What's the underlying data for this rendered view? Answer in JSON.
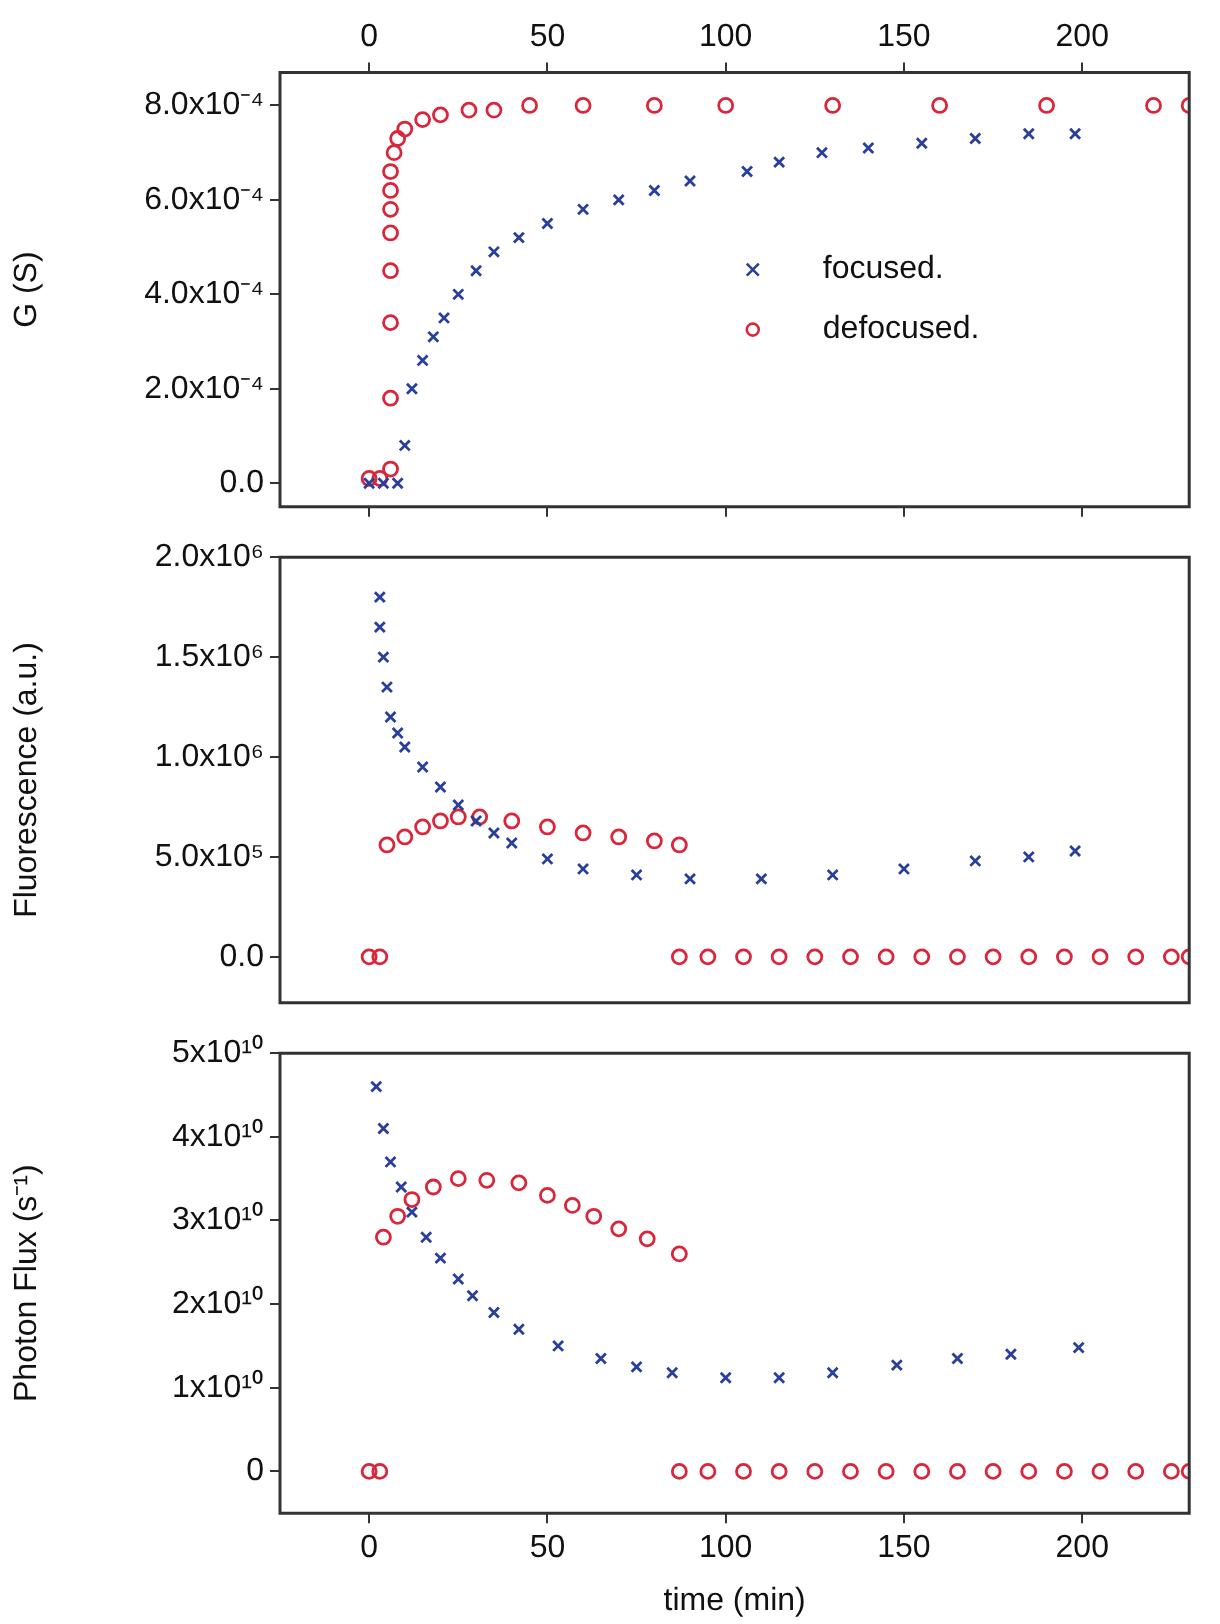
{
  "chart_data": [
    {
      "type": "scatter",
      "ylabel": "G (S)",
      "legend": "right",
      "tick_labels": "y",
      "xlim": [
        -25,
        230
      ],
      "xticks": [
        0,
        50,
        100,
        150,
        200
      ],
      "x2lim": [
        -25,
        230
      ],
      "x2ticks": [
        0,
        50,
        100,
        150,
        200
      ],
      "ylim": [
        -5e-05,
        0.00087
      ],
      "yticks": [
        {
          "value": 0,
          "label": "0.0"
        },
        {
          "value": 0.0002,
          "label": "2.0x10⁻⁴"
        },
        {
          "value": 0.0004,
          "label": "4.0x10⁻⁴"
        },
        {
          "value": 0.0006,
          "label": "6.0x10⁻⁴"
        },
        {
          "value": 0.0008,
          "label": "8.0x10⁻⁴"
        }
      ],
      "series": [
        {
          "name": "focused.",
          "color": "#2a3f9a",
          "marker": "cross",
          "x": [
            0,
            4,
            8,
            10,
            12,
            15,
            18,
            21,
            25,
            30,
            35,
            42,
            50,
            60,
            70,
            80,
            90,
            106,
            115,
            127,
            140,
            155,
            170,
            185,
            198
          ],
          "values": [
            0,
            0,
            0,
            8e-05,
            0.0002,
            0.00026,
            0.00031,
            0.00035,
            0.0004,
            0.00045,
            0.00049,
            0.00052,
            0.00055,
            0.00058,
            0.0006,
            0.00062,
            0.00064,
            0.00066,
            0.00068,
            0.0007,
            0.00071,
            0.00072,
            0.00073,
            0.00074,
            0.00074
          ]
        },
        {
          "name": "defocused.",
          "color": "#d9263a",
          "marker": "circle",
          "x": [
            0,
            3,
            6,
            6,
            6,
            6,
            6,
            6,
            6,
            6,
            7,
            8,
            10,
            15,
            20,
            28,
            35,
            45,
            60,
            80,
            100,
            130,
            160,
            190,
            220,
            230
          ],
          "values": [
            1e-05,
            1e-05,
            3e-05,
            0.00018,
            0.00034,
            0.00045,
            0.00053,
            0.00058,
            0.00062,
            0.00066,
            0.0007,
            0.00073,
            0.00075,
            0.00077,
            0.00078,
            0.00079,
            0.00079,
            0.0008,
            0.0008,
            0.0008,
            0.0008,
            0.0008,
            0.0008,
            0.0008,
            0.0008,
            0.0008
          ]
        }
      ]
    },
    {
      "type": "scatter",
      "ylabel": "Fluorescence (a.u.)",
      "tick_labels": "y",
      "xlim": [
        -25,
        230
      ],
      "ylim": [
        -230000,
        2000000
      ],
      "yticks": [
        {
          "value": 0,
          "label": "0.0"
        },
        {
          "value": 500000,
          "label": "5.0x10⁵"
        },
        {
          "value": 1000000,
          "label": "1.0x10⁶"
        },
        {
          "value": 1500000,
          "label": "1.5x10⁶"
        },
        {
          "value": 2000000,
          "label": "2.0x10⁶"
        }
      ],
      "series": [
        {
          "color": "#2a3f9a",
          "marker": "cross",
          "x": [
            3,
            3,
            4,
            5,
            6,
            8,
            10,
            15,
            20,
            25,
            30,
            35,
            40,
            50,
            60,
            75,
            90,
            110,
            130,
            150,
            170,
            185,
            198
          ],
          "values": [
            1800000,
            1650000,
            1500000,
            1350000,
            1200000,
            1120000,
            1050000,
            950000,
            850000,
            760000,
            680000,
            620000,
            570000,
            490000,
            440000,
            410000,
            390000,
            390000,
            410000,
            440000,
            480000,
            500000,
            530000
          ]
        },
        {
          "color": "#d9263a",
          "marker": "circle",
          "x": [
            0,
            3,
            5,
            10,
            15,
            20,
            25,
            31,
            40,
            50,
            60,
            70,
            80,
            87,
            87,
            95,
            105,
            115,
            125,
            135,
            145,
            155,
            165,
            175,
            185,
            195,
            205,
            215,
            225,
            230
          ],
          "values": [
            0,
            0,
            560000,
            600000,
            650000,
            680000,
            700000,
            700000,
            680000,
            650000,
            620000,
            600000,
            580000,
            560000,
            0,
            0,
            0,
            0,
            0,
            0,
            0,
            0,
            0,
            0,
            0,
            0,
            0,
            0,
            0,
            0
          ]
        }
      ]
    },
    {
      "type": "scatter",
      "ylabel": "Photon Flux (s⁻¹)",
      "xlabel": "time (min)",
      "xlim": [
        -25,
        230
      ],
      "xticks": [
        0,
        50,
        100,
        150,
        200
      ],
      "ylim": [
        -5000000000,
        50000000000
      ],
      "yticks": [
        {
          "value": 0,
          "label": "0"
        },
        {
          "value": 10000000000,
          "label": "1x10¹⁰"
        },
        {
          "value": 20000000000,
          "label": "2x10¹⁰"
        },
        {
          "value": 30000000000,
          "label": "3x10¹⁰"
        },
        {
          "value": 40000000000,
          "label": "4x10¹⁰"
        },
        {
          "value": 50000000000,
          "label": "5x10¹⁰"
        }
      ],
      "series": [
        {
          "color": "#2a3f9a",
          "marker": "cross",
          "x": [
            2,
            4,
            6,
            9,
            12,
            16,
            20,
            25,
            29,
            35,
            42,
            53,
            65,
            75,
            85,
            100,
            115,
            130,
            148,
            165,
            180,
            199
          ],
          "values": [
            46000000000,
            41000000000,
            37000000000,
            34000000000,
            31000000000,
            28000000000,
            25500000000,
            23000000000,
            21000000000,
            19000000000,
            17000000000,
            15000000000,
            13500000000,
            12500000000,
            11800000000,
            11200000000,
            11200000000,
            11800000000,
            12700000000,
            13500000000,
            14000000000,
            14800000000
          ]
        },
        {
          "color": "#d9263a",
          "marker": "circle",
          "x": [
            0,
            3,
            4,
            8,
            12,
            18,
            25,
            33,
            42,
            50,
            57,
            63,
            70,
            78,
            87,
            87,
            95,
            105,
            115,
            125,
            135,
            145,
            155,
            165,
            175,
            185,
            195,
            205,
            215,
            225,
            230
          ],
          "values": [
            0,
            0,
            28000000000,
            30500000000,
            32500000000,
            34000000000,
            35000000000,
            34800000000,
            34500000000,
            33000000000,
            31800000000,
            30500000000,
            29000000000,
            27800000000,
            26000000000,
            0,
            0,
            0,
            0,
            0,
            0,
            0,
            0,
            0,
            0,
            0,
            0,
            0,
            0,
            0,
            0
          ]
        }
      ]
    }
  ]
}
